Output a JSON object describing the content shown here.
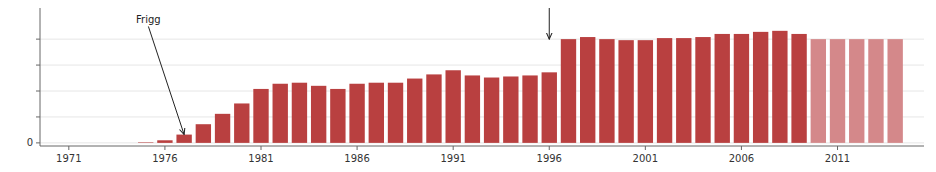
{
  "chart_data": {
    "type": "bar",
    "x": [
      1971,
      1972,
      1973,
      1974,
      1975,
      1976,
      1977,
      1978,
      1979,
      1980,
      1981,
      1982,
      1983,
      1984,
      1985,
      1986,
      1987,
      1988,
      1989,
      1990,
      1991,
      1992,
      1993,
      1994,
      1995,
      1996,
      1997,
      1998,
      1999,
      2000,
      2001,
      2002,
      2003,
      2004,
      2005,
      2006,
      2007,
      2008,
      2009,
      2010,
      2011,
      2012,
      2013,
      2014
    ],
    "values": [
      0,
      0,
      0,
      0,
      0.5,
      2.5,
      8,
      18,
      28,
      38,
      52,
      57,
      58,
      55,
      52,
      57,
      58,
      58,
      62,
      66,
      70,
      65,
      63,
      64,
      65,
      68,
      100,
      102,
      100,
      99,
      99,
      101,
      101,
      102,
      105,
      105,
      107,
      108,
      105,
      100,
      100,
      100,
      100,
      100
    ],
    "colors": [
      "#b94040",
      "#b94040",
      "#b94040",
      "#b94040",
      "#b94040",
      "#b94040",
      "#b94040",
      "#b94040",
      "#b94040",
      "#b94040",
      "#b94040",
      "#b94040",
      "#b94040",
      "#b94040",
      "#b94040",
      "#b94040",
      "#b94040",
      "#b94040",
      "#b94040",
      "#b94040",
      "#b94040",
      "#b94040",
      "#b94040",
      "#b94040",
      "#b94040",
      "#b94040",
      "#b94040",
      "#b94040",
      "#b94040",
      "#b94040",
      "#b94040",
      "#b94040",
      "#b94040",
      "#b94040",
      "#b94040",
      "#b94040",
      "#b94040",
      "#b94040",
      "#b94040",
      "#d4888a",
      "#d4888a",
      "#d4888a",
      "#d4888a",
      "#d4888a"
    ],
    "xlim": [
      1969.5,
      2015.5
    ],
    "xticks": [
      1971,
      1976,
      1981,
      1986,
      1991,
      1996,
      2001,
      2006,
      2011
    ],
    "ylim": [
      -3,
      130
    ],
    "yticks": [
      0,
      {
        "value": 25,
        "label": null
      },
      {
        "value": 50,
        "label": null
      },
      {
        "value": 75,
        "label": null
      },
      {
        "value": 100,
        "label": null
      }
    ],
    "annotations": [
      {
        "text": "Frigg",
        "x": 1974.5,
        "y": 118,
        "arrow_x": 1977,
        "arrow_y": 8
      },
      {
        "x": 1996,
        "y": 130,
        "arrow_x": 1996,
        "arrow_y": 100
      }
    ]
  }
}
